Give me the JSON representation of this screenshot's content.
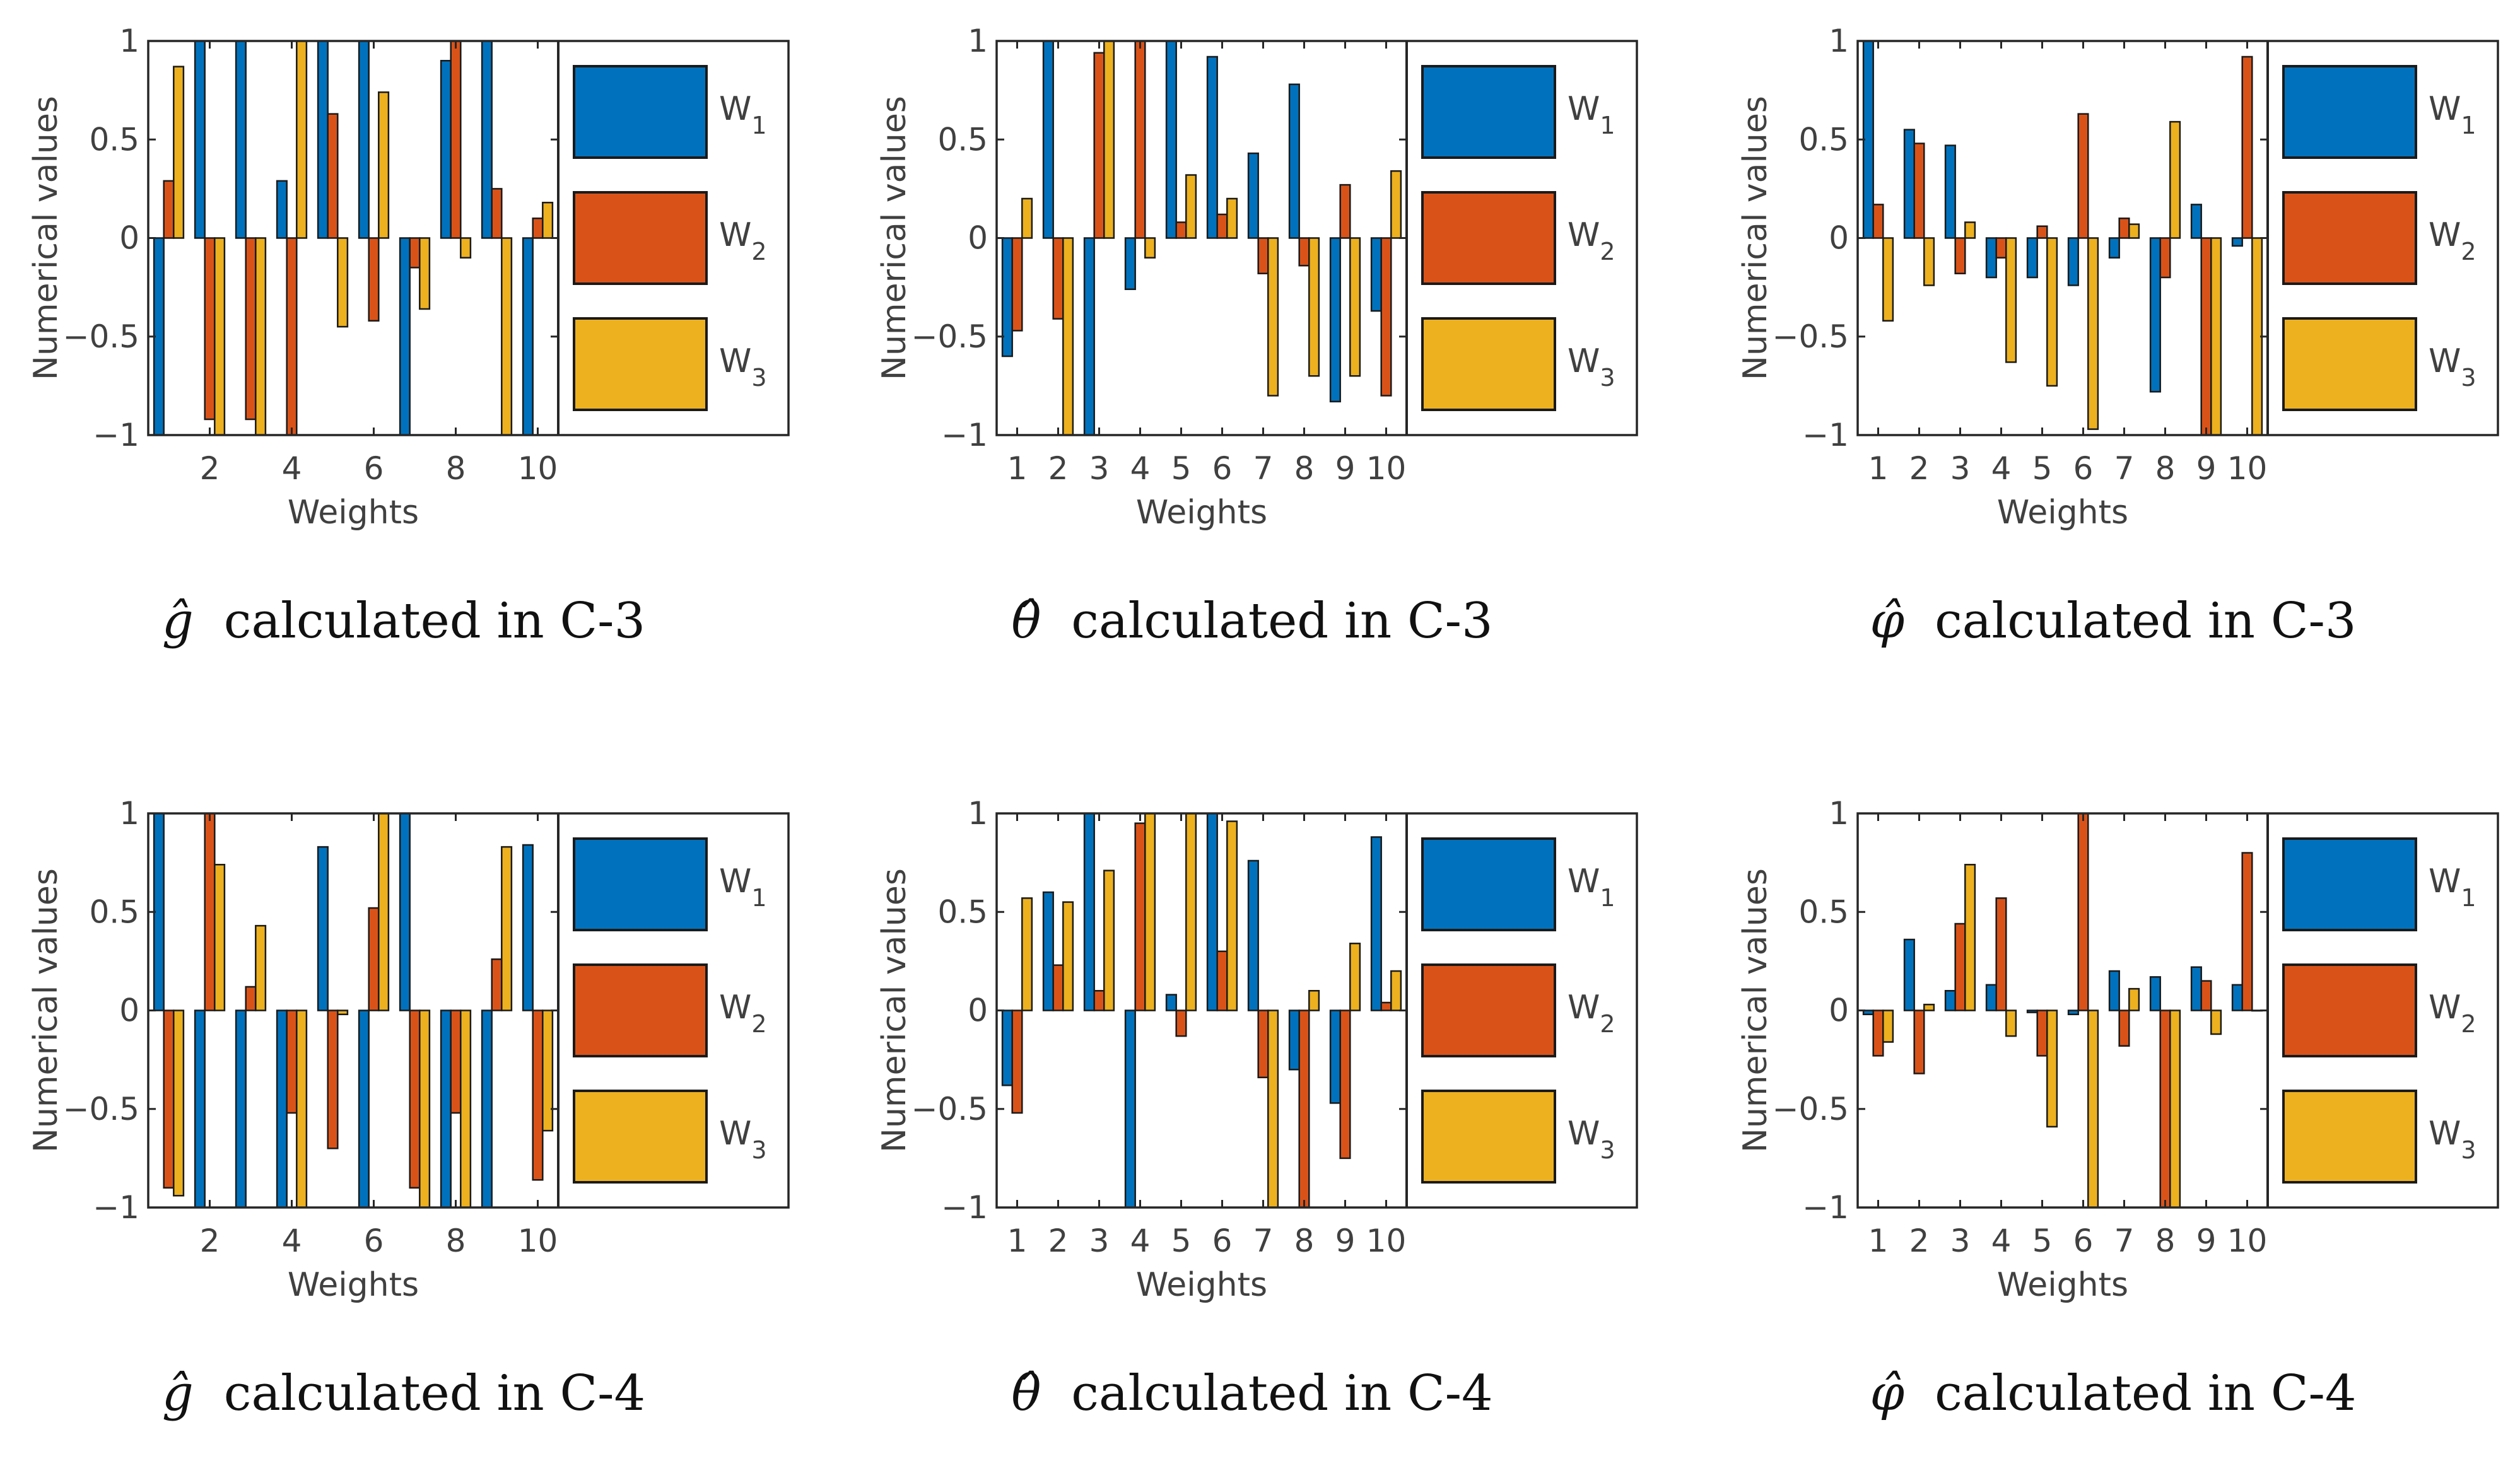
{
  "figure": {
    "background": "#ffffff"
  },
  "colors": {
    "w1": "#0072bd",
    "w2": "#d95319",
    "w3": "#edb120",
    "axis": "#262626",
    "text": "#404040"
  },
  "panels": [
    {
      "caption": {
        "symbol": "ĝ",
        "text": "calculated in C-3"
      },
      "chart_data": {
        "type": "bar",
        "x": [
          1,
          2,
          3,
          4,
          5,
          6,
          7,
          8,
          9,
          10
        ],
        "xticks": [
          2,
          4,
          6,
          8,
          10
        ],
        "xlabel": "Weights",
        "ylabel": "Numerical values",
        "ylim": [
          -1,
          1
        ],
        "yticks": [
          -1,
          -0.5,
          0,
          0.5,
          1
        ],
        "ytick_labels": [
          "−1",
          "−0.5",
          "0",
          "0.5",
          "1"
        ],
        "grid": false,
        "legend_position": "right",
        "series": [
          {
            "name": "W1",
            "values": [
              -1,
              1,
              1,
              0.29,
              1,
              1,
              -1,
              0.9,
              1,
              -1
            ]
          },
          {
            "name": "W2",
            "values": [
              0.29,
              -0.92,
              -0.92,
              -1,
              0.63,
              -0.42,
              -0.15,
              1,
              0.25,
              0.1
            ]
          },
          {
            "name": "W3",
            "values": [
              0.87,
              -1,
              -1,
              1,
              -0.45,
              0.74,
              -0.36,
              -0.1,
              -1,
              0.18
            ]
          }
        ]
      }
    },
    {
      "caption": {
        "symbol": "θ̂",
        "text": "calculated in C-3"
      },
      "chart_data": {
        "type": "bar",
        "x": [
          1,
          2,
          3,
          4,
          5,
          6,
          7,
          8,
          9,
          10
        ],
        "xticks": [
          1,
          2,
          3,
          4,
          5,
          6,
          7,
          8,
          9,
          10
        ],
        "xlabel": "Weights",
        "ylabel": "Numerical values",
        "ylim": [
          -1,
          1
        ],
        "yticks": [
          -1,
          -0.5,
          0,
          0.5,
          1
        ],
        "ytick_labels": [
          "−1",
          "−0.5",
          "0",
          "0.5",
          "1"
        ],
        "grid": false,
        "legend_position": "right",
        "series": [
          {
            "name": "W1",
            "values": [
              -0.6,
              1,
              -1,
              -0.26,
              1,
              0.92,
              0.43,
              0.78,
              -0.83,
              -0.37
            ]
          },
          {
            "name": "W2",
            "values": [
              -0.47,
              -0.41,
              0.94,
              1,
              0.08,
              0.12,
              -0.18,
              -0.14,
              0.27,
              -0.8
            ]
          },
          {
            "name": "W3",
            "values": [
              0.2,
              -1,
              1,
              -0.1,
              0.32,
              0.2,
              -0.8,
              -0.7,
              -0.7,
              0.34
            ]
          }
        ]
      }
    },
    {
      "caption": {
        "symbol": "φ̂",
        "text": "calculated in C-3"
      },
      "chart_data": {
        "type": "bar",
        "x": [
          1,
          2,
          3,
          4,
          5,
          6,
          7,
          8,
          9,
          10
        ],
        "xticks": [
          1,
          2,
          3,
          4,
          5,
          6,
          7,
          8,
          9,
          10
        ],
        "xlabel": "Weights",
        "ylabel": "Numerical values",
        "ylim": [
          -1,
          1
        ],
        "yticks": [
          -1,
          -0.5,
          0,
          0.5,
          1
        ],
        "ytick_labels": [
          "−1",
          "−0.5",
          "0",
          "0.5",
          "1"
        ],
        "grid": false,
        "legend_position": "right",
        "series": [
          {
            "name": "W1",
            "values": [
              1,
              0.55,
              0.47,
              -0.2,
              -0.2,
              -0.24,
              -0.1,
              -0.78,
              0.17,
              -0.04
            ]
          },
          {
            "name": "W2",
            "values": [
              0.17,
              0.48,
              -0.18,
              -0.1,
              0.06,
              0.63,
              0.1,
              -0.2,
              -1,
              0.92
            ]
          },
          {
            "name": "W3",
            "values": [
              -0.42,
              -0.24,
              0.08,
              -0.63,
              -0.75,
              -0.97,
              0.07,
              0.59,
              -1,
              -1
            ]
          }
        ]
      }
    },
    {
      "caption": {
        "symbol": "ĝ",
        "text": "calculated in C-4"
      },
      "chart_data": {
        "type": "bar",
        "x": [
          1,
          2,
          3,
          4,
          5,
          6,
          7,
          8,
          9,
          10
        ],
        "xticks": [
          2,
          4,
          6,
          8,
          10
        ],
        "xlabel": "Weights",
        "ylabel": "Numerical values",
        "ylim": [
          -1,
          1
        ],
        "yticks": [
          -1,
          -0.5,
          0,
          0.5,
          1
        ],
        "ytick_labels": [
          "−1",
          "−0.5",
          "0",
          "0.5",
          "1"
        ],
        "grid": false,
        "legend_position": "right",
        "series": [
          {
            "name": "W1",
            "values": [
              1,
              -1,
              -1,
              -1,
              0.83,
              -1,
              1,
              -1,
              -1,
              0.84
            ]
          },
          {
            "name": "W2",
            "values": [
              -0.9,
              1,
              0.12,
              -0.52,
              -0.7,
              0.52,
              -0.9,
              -0.52,
              0.26,
              -0.86
            ]
          },
          {
            "name": "W3",
            "values": [
              -0.94,
              0.74,
              0.43,
              -1,
              -0.02,
              1,
              -1,
              -1,
              0.83,
              -0.61
            ]
          }
        ]
      }
    },
    {
      "caption": {
        "symbol": "θ̂",
        "text": "calculated in C-4"
      },
      "chart_data": {
        "type": "bar",
        "x": [
          1,
          2,
          3,
          4,
          5,
          6,
          7,
          8,
          9,
          10
        ],
        "xticks": [
          1,
          2,
          3,
          4,
          5,
          6,
          7,
          8,
          9,
          10
        ],
        "xlabel": "Weights",
        "ylabel": "Numerical values",
        "ylim": [
          -1,
          1
        ],
        "yticks": [
          -1,
          -0.5,
          0,
          0.5,
          1
        ],
        "ytick_labels": [
          "−1",
          "−0.5",
          "0",
          "0.5",
          "1"
        ],
        "grid": false,
        "legend_position": "right",
        "series": [
          {
            "name": "W1",
            "values": [
              -0.38,
              0.6,
              1,
              -1,
              0.08,
              1,
              0.76,
              -0.3,
              -0.47,
              0.88
            ]
          },
          {
            "name": "W2",
            "values": [
              -0.52,
              0.23,
              0.1,
              0.95,
              -0.13,
              0.3,
              -0.34,
              -1,
              -0.75,
              0.04
            ]
          },
          {
            "name": "W3",
            "values": [
              0.57,
              0.55,
              0.71,
              1,
              1,
              0.96,
              -1,
              0.1,
              0.34,
              0.2
            ]
          }
        ]
      }
    },
    {
      "caption": {
        "symbol": "φ̂",
        "text": "calculated in C-4"
      },
      "chart_data": {
        "type": "bar",
        "x": [
          1,
          2,
          3,
          4,
          5,
          6,
          7,
          8,
          9,
          10
        ],
        "xticks": [
          1,
          2,
          3,
          4,
          5,
          6,
          7,
          8,
          9,
          10
        ],
        "xlabel": "Weights",
        "ylabel": "Numerical values",
        "ylim": [
          -1,
          1
        ],
        "yticks": [
          -1,
          -0.5,
          0,
          0.5,
          1
        ],
        "ytick_labels": [
          "−1",
          "−0.5",
          "0",
          "0.5",
          "1"
        ],
        "grid": false,
        "legend_position": "right",
        "series": [
          {
            "name": "W1",
            "values": [
              -0.02,
              0.36,
              0.1,
              0.13,
              -0.01,
              -0.02,
              0.2,
              0.17,
              0.22,
              0.13
            ]
          },
          {
            "name": "W2",
            "values": [
              -0.23,
              -0.32,
              0.44,
              0.57,
              -0.23,
              1,
              -0.18,
              -1,
              0.15,
              0.8
            ]
          },
          {
            "name": "W3",
            "values": [
              -0.16,
              0.03,
              0.74,
              -0.13,
              -0.59,
              -1,
              0.11,
              -1,
              -0.12,
              0
            ]
          }
        ]
      }
    }
  ]
}
